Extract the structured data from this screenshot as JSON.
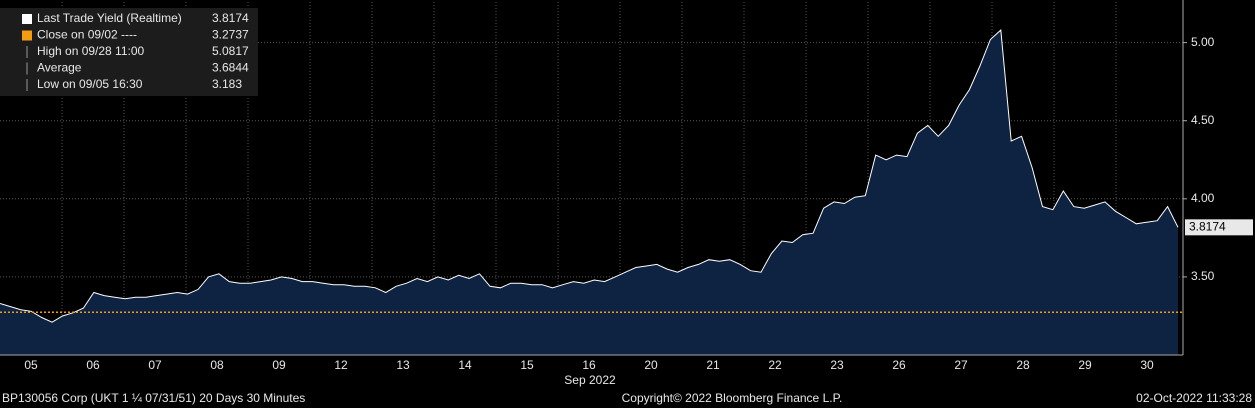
{
  "chart_data": {
    "type": "area",
    "x_label": "Sep 2022",
    "categories": [
      "05",
      "06",
      "07",
      "08",
      "09",
      "12",
      "13",
      "14",
      "15",
      "16",
      "20",
      "21",
      "22",
      "23",
      "26",
      "27",
      "28",
      "29",
      "30"
    ],
    "series": [
      {
        "name": "Last Trade Yield (Realtime)",
        "color": "#ffffff",
        "fill": "#0d2341",
        "values": [
          [
            3.33,
            3.31,
            3.29,
            3.28,
            3.24,
            3.21
          ],
          [
            3.25,
            3.27,
            3.3,
            3.4,
            3.38,
            3.37
          ],
          [
            3.36,
            3.37,
            3.37,
            3.38,
            3.39,
            3.4
          ],
          [
            3.39,
            3.42,
            3.5,
            3.52,
            3.47,
            3.46
          ],
          [
            3.46,
            3.47,
            3.48,
            3.5,
            3.49,
            3.47
          ],
          [
            3.47,
            3.46,
            3.45,
            3.45,
            3.44,
            3.44
          ],
          [
            3.43,
            3.4,
            3.44,
            3.46,
            3.49,
            3.47
          ],
          [
            3.5,
            3.48,
            3.51,
            3.49,
            3.52,
            3.44
          ],
          [
            3.43,
            3.46,
            3.46,
            3.45,
            3.45,
            3.43
          ],
          [
            3.45,
            3.47,
            3.46,
            3.48,
            3.47,
            3.5
          ],
          [
            3.53,
            3.56,
            3.57,
            3.58,
            3.55,
            3.53
          ],
          [
            3.56,
            3.58,
            3.61,
            3.6,
            3.61,
            3.58
          ],
          [
            3.54,
            3.53,
            3.65,
            3.73,
            3.72,
            3.77
          ],
          [
            3.78,
            3.94,
            3.98,
            3.97,
            4.01,
            4.02
          ],
          [
            4.28,
            4.25,
            4.28,
            4.27,
            4.42,
            4.47
          ],
          [
            4.4,
            4.47,
            4.6,
            4.7,
            4.85,
            5.02
          ],
          [
            5.08,
            4.37,
            4.4,
            4.2,
            3.95,
            3.93
          ],
          [
            4.05,
            3.95,
            3.94,
            3.96,
            3.98,
            3.92
          ],
          [
            3.88,
            3.84,
            3.85,
            3.86,
            3.95,
            3.8174
          ]
        ]
      }
    ],
    "close": {
      "label": "Close on 09/02 ----",
      "value": 3.2737,
      "color": "#f39c12"
    },
    "stats": [
      {
        "label": "High on 09/28 11:00",
        "value": 5.0817
      },
      {
        "label": "Average",
        "value": 3.6844
      },
      {
        "label": "Low on 09/05 16:30",
        "value": 3.183
      }
    ],
    "ylim": [
      3.0,
      5.26
    ],
    "yticks": [
      {
        "value": 3.5,
        "label": "3.50"
      },
      {
        "value": 4,
        "label": "4.00"
      },
      {
        "value": 4.5,
        "label": "4.50"
      },
      {
        "value": 5,
        "label": "5.00"
      }
    ],
    "grid": true,
    "footer": {
      "left": "BP130056 Corp (UKT 1 ¼ 07/31/51) 20 Days 30 Minutes",
      "center": "Copyright© 2022 Bloomberg Finance L.P.",
      "right": "02-Oct-2022 11:33:28"
    }
  }
}
